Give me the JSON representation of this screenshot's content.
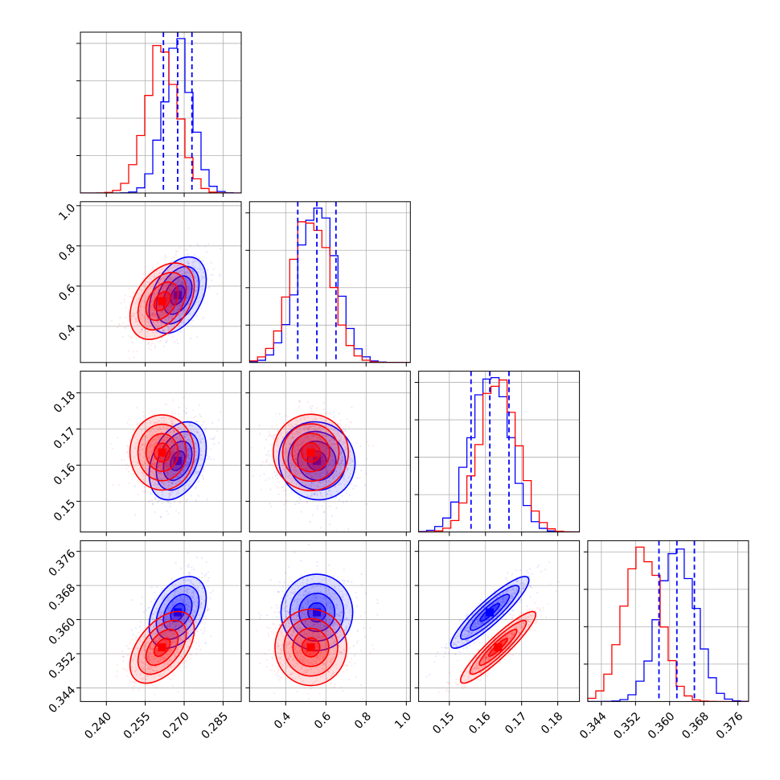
{
  "chart_data": {
    "type": "corner",
    "parameters": 4,
    "colors": {
      "blue": "#0000ff",
      "red": "#ff0000"
    },
    "grid": true,
    "series": [
      {
        "color": "#0000ff",
        "means": [
          0.2675,
          0.555,
          0.1612,
          0.3617
        ],
        "sds": [
          0.0055,
          0.095,
          0.0054,
          0.0042
        ]
      },
      {
        "color": "#ff0000",
        "means": [
          0.2615,
          0.525,
          0.1635,
          0.3535
        ],
        "sds": [
          0.0062,
          0.095,
          0.0052,
          0.0042
        ]
      }
    ],
    "correlations_blue": [
      [
        0,
        1,
        0.4
      ],
      [
        0,
        2,
        0.35
      ],
      [
        0,
        3,
        0.4
      ],
      [
        1,
        2,
        -0.05
      ],
      [
        1,
        3,
        0.0
      ],
      [
        2,
        3,
        0.9
      ]
    ],
    "correlations_red": [
      [
        0,
        1,
        0.4
      ],
      [
        0,
        2,
        0.0
      ],
      [
        0,
        3,
        0.5
      ],
      [
        1,
        2,
        0.0
      ],
      [
        1,
        3,
        0.0
      ],
      [
        2,
        3,
        0.92
      ]
    ],
    "quantiles_blue": [
      [
        0.262,
        0.2675,
        0.273
      ],
      [
        0.46,
        0.555,
        0.65
      ],
      [
        0.156,
        0.1612,
        0.1665
      ],
      [
        0.3575,
        0.3617,
        0.3658
      ]
    ],
    "axes": [
      {
        "range": [
          0.23,
          0.292
        ],
        "ticks": [
          0.24,
          0.255,
          0.27,
          0.285
        ],
        "tick_labels": [
          "0.240",
          "0.255",
          "0.270",
          "0.285"
        ]
      },
      {
        "range": [
          0.22,
          1.02
        ],
        "ticks": [
          0.4,
          0.6,
          0.8,
          1.0
        ],
        "tick_labels": [
          "0.4",
          "0.6",
          "0.8",
          "1.0"
        ]
      },
      {
        "range": [
          0.1415,
          0.186
        ],
        "ticks": [
          0.15,
          0.16,
          0.17,
          0.18
        ],
        "tick_labels": [
          "0.15",
          "0.16",
          "0.17",
          "0.18"
        ]
      },
      {
        "range": [
          0.3408,
          0.3785
        ],
        "ticks": [
          0.344,
          0.352,
          0.36,
          0.368,
          0.376
        ],
        "tick_labels": [
          "0.344",
          "0.352",
          "0.360",
          "0.368",
          "0.376"
        ]
      }
    ]
  }
}
